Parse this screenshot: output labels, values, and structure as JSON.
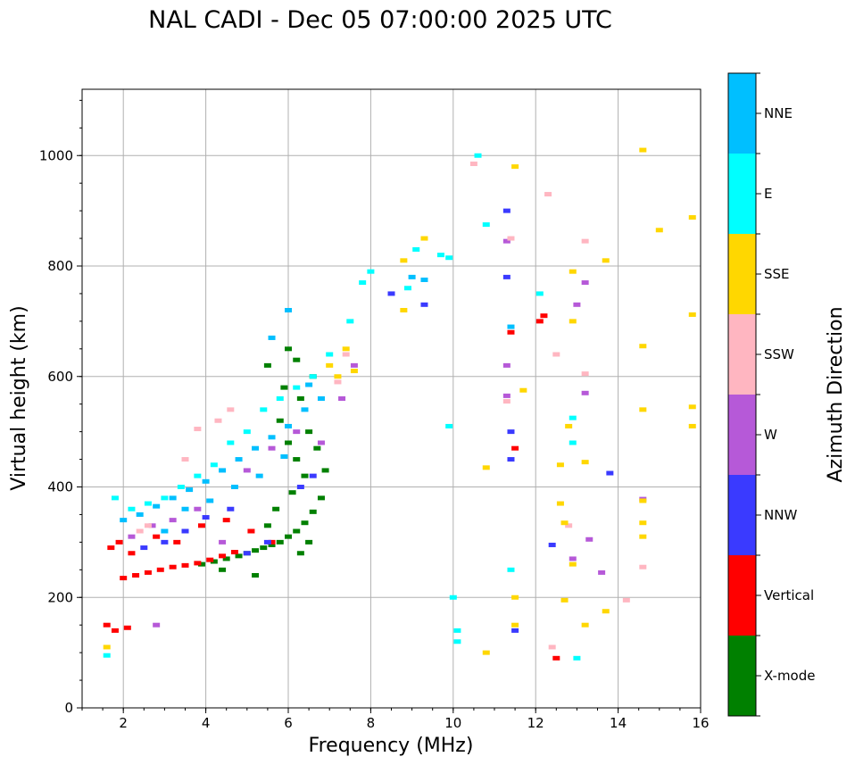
{
  "chart_data": {
    "type": "scatter",
    "title": "NAL CADI - Dec 05 07:00:00 2025 UTC",
    "xlabel": "Frequency (MHz)",
    "ylabel": "Virtual height (km)",
    "xlim": [
      1,
      16
    ],
    "ylim": [
      0,
      1120
    ],
    "xticks": [
      2,
      4,
      6,
      8,
      10,
      12,
      14,
      16
    ],
    "yticks": [
      0,
      200,
      400,
      600,
      800,
      1000
    ],
    "grid": true,
    "colorbar": {
      "title": "Azimuth Direction",
      "categories": [
        {
          "name": "X-mode",
          "color": "#008000"
        },
        {
          "name": "Vertical",
          "color": "#ff0000"
        },
        {
          "name": "NNW",
          "color": "#3a3aff"
        },
        {
          "name": "W",
          "color": "#b659d8"
        },
        {
          "name": "SSW",
          "color": "#ffb6c1"
        },
        {
          "name": "SSE",
          "color": "#ffd700"
        },
        {
          "name": "E",
          "color": "#00ffff"
        },
        {
          "name": "NNE",
          "color": "#00bfff"
        }
      ]
    },
    "series": [
      {
        "name": "X-mode",
        "points": [
          [
            4.2,
            265
          ],
          [
            4.5,
            270
          ],
          [
            4.8,
            275
          ],
          [
            5.0,
            280
          ],
          [
            5.2,
            285
          ],
          [
            5.4,
            290
          ],
          [
            5.6,
            295
          ],
          [
            5.8,
            300
          ],
          [
            6.0,
            310
          ],
          [
            6.2,
            320
          ],
          [
            6.4,
            335
          ],
          [
            6.6,
            355
          ],
          [
            6.8,
            380
          ],
          [
            6.4,
            420
          ],
          [
            6.2,
            450
          ],
          [
            6.0,
            480
          ],
          [
            6.5,
            500
          ],
          [
            5.8,
            520
          ],
          [
            6.3,
            560
          ],
          [
            5.9,
            580
          ],
          [
            6.6,
            600
          ],
          [
            6.2,
            630
          ],
          [
            6.0,
            650
          ],
          [
            5.5,
            620
          ],
          [
            4.4,
            250
          ],
          [
            5.2,
            240
          ],
          [
            3.9,
            260
          ],
          [
            6.7,
            470
          ],
          [
            6.1,
            390
          ],
          [
            5.7,
            360
          ],
          [
            6.3,
            280
          ],
          [
            5.5,
            330
          ],
          [
            6.9,
            430
          ],
          [
            6.5,
            300
          ]
        ]
      },
      {
        "name": "Vertical",
        "points": [
          [
            2.0,
            235
          ],
          [
            2.3,
            240
          ],
          [
            2.6,
            245
          ],
          [
            2.9,
            250
          ],
          [
            3.2,
            255
          ],
          [
            3.5,
            258
          ],
          [
            3.8,
            262
          ],
          [
            4.1,
            268
          ],
          [
            4.4,
            275
          ],
          [
            4.7,
            282
          ],
          [
            1.7,
            290
          ],
          [
            1.9,
            300
          ],
          [
            2.2,
            280
          ],
          [
            2.8,
            310
          ],
          [
            3.3,
            300
          ],
          [
            3.9,
            330
          ],
          [
            4.5,
            340
          ],
          [
            5.1,
            320
          ],
          [
            5.6,
            300
          ],
          [
            1.6,
            150
          ],
          [
            1.8,
            140
          ],
          [
            2.1,
            145
          ],
          [
            11.4,
            680
          ],
          [
            12.1,
            700
          ],
          [
            12.2,
            710
          ],
          [
            11.5,
            470
          ],
          [
            12.5,
            90
          ]
        ]
      },
      {
        "name": "NNW",
        "points": [
          [
            2.5,
            290
          ],
          [
            3.0,
            300
          ],
          [
            3.5,
            320
          ],
          [
            4.0,
            345
          ],
          [
            4.6,
            360
          ],
          [
            5.0,
            280
          ],
          [
            5.5,
            300
          ],
          [
            6.3,
            400
          ],
          [
            6.6,
            420
          ],
          [
            11.4,
            450
          ],
          [
            11.4,
            500
          ],
          [
            12.4,
            295
          ],
          [
            13.8,
            425
          ],
          [
            8.5,
            750
          ],
          [
            9.3,
            730
          ],
          [
            11.3,
            780
          ],
          [
            11.3,
            900
          ],
          [
            11.5,
            140
          ]
        ]
      },
      {
        "name": "W",
        "points": [
          [
            2.2,
            310
          ],
          [
            2.7,
            330
          ],
          [
            3.2,
            340
          ],
          [
            3.8,
            360
          ],
          [
            4.4,
            300
          ],
          [
            5.0,
            430
          ],
          [
            5.6,
            470
          ],
          [
            6.2,
            500
          ],
          [
            6.8,
            480
          ],
          [
            7.3,
            560
          ],
          [
            7.6,
            620
          ],
          [
            11.3,
            620
          ],
          [
            11.3,
            565
          ],
          [
            12.9,
            270
          ],
          [
            13.0,
            730
          ],
          [
            13.3,
            305
          ],
          [
            13.6,
            245
          ],
          [
            14.6,
            378
          ],
          [
            11.3,
            845
          ],
          [
            13.2,
            770
          ],
          [
            13.2,
            570
          ],
          [
            2.8,
            150
          ]
        ]
      },
      {
        "name": "SSW",
        "points": [
          [
            2.4,
            320
          ],
          [
            2.6,
            330
          ],
          [
            3.5,
            450
          ],
          [
            3.8,
            505
          ],
          [
            4.3,
            520
          ],
          [
            4.6,
            540
          ],
          [
            7.2,
            590
          ],
          [
            7.4,
            640
          ],
          [
            11.3,
            555
          ],
          [
            12.3,
            930
          ],
          [
            12.5,
            640
          ],
          [
            12.8,
            330
          ],
          [
            13.2,
            605
          ],
          [
            13.2,
            845
          ],
          [
            14.2,
            195
          ],
          [
            14.6,
            255
          ],
          [
            12.4,
            110
          ],
          [
            10.5,
            985
          ],
          [
            11.4,
            850
          ]
        ]
      },
      {
        "name": "SSE",
        "points": [
          [
            7.0,
            620
          ],
          [
            7.2,
            600
          ],
          [
            7.4,
            650
          ],
          [
            7.6,
            610
          ],
          [
            8.8,
            720
          ],
          [
            8.8,
            810
          ],
          [
            9.3,
            850
          ],
          [
            10.8,
            435
          ],
          [
            11.5,
            980
          ],
          [
            11.5,
            200
          ],
          [
            11.5,
            150
          ],
          [
            11.7,
            575
          ],
          [
            12.6,
            440
          ],
          [
            12.6,
            370
          ],
          [
            12.7,
            335
          ],
          [
            12.8,
            510
          ],
          [
            12.9,
            790
          ],
          [
            12.9,
            700
          ],
          [
            12.9,
            260
          ],
          [
            13.2,
            445
          ],
          [
            13.2,
            150
          ],
          [
            13.7,
            810
          ],
          [
            13.7,
            175
          ],
          [
            14.6,
            1010
          ],
          [
            14.6,
            655
          ],
          [
            14.6,
            540
          ],
          [
            14.6,
            375
          ],
          [
            14.6,
            335
          ],
          [
            14.6,
            310
          ],
          [
            15.0,
            865
          ],
          [
            15.8,
            888
          ],
          [
            15.8,
            712
          ],
          [
            15.8,
            545
          ],
          [
            15.8,
            510
          ],
          [
            10.8,
            100
          ],
          [
            12.7,
            195
          ],
          [
            1.6,
            110
          ]
        ]
      },
      {
        "name": "E",
        "points": [
          [
            1.8,
            380
          ],
          [
            2.2,
            360
          ],
          [
            2.6,
            370
          ],
          [
            3.0,
            380
          ],
          [
            3.4,
            400
          ],
          [
            3.8,
            420
          ],
          [
            4.2,
            440
          ],
          [
            4.6,
            480
          ],
          [
            5.0,
            500
          ],
          [
            5.4,
            540
          ],
          [
            5.8,
            560
          ],
          [
            6.2,
            580
          ],
          [
            6.6,
            600
          ],
          [
            7.0,
            640
          ],
          [
            7.5,
            700
          ],
          [
            7.8,
            770
          ],
          [
            8.0,
            790
          ],
          [
            8.9,
            760
          ],
          [
            9.1,
            830
          ],
          [
            9.7,
            820
          ],
          [
            9.9,
            815
          ],
          [
            10.0,
            200
          ],
          [
            10.1,
            140
          ],
          [
            10.1,
            120
          ],
          [
            10.6,
            1000
          ],
          [
            10.8,
            875
          ],
          [
            12.1,
            750
          ],
          [
            12.9,
            525
          ],
          [
            12.9,
            480
          ],
          [
            13.0,
            90
          ],
          [
            9.9,
            510
          ],
          [
            11.4,
            250
          ],
          [
            1.6,
            95
          ]
        ]
      },
      {
        "name": "NNE",
        "points": [
          [
            2.0,
            340
          ],
          [
            2.4,
            350
          ],
          [
            2.8,
            365
          ],
          [
            3.2,
            380
          ],
          [
            3.6,
            395
          ],
          [
            4.0,
            410
          ],
          [
            4.4,
            430
          ],
          [
            4.8,
            450
          ],
          [
            5.2,
            470
          ],
          [
            5.6,
            490
          ],
          [
            6.0,
            510
          ],
          [
            6.4,
            540
          ],
          [
            6.8,
            560
          ],
          [
            3.0,
            320
          ],
          [
            3.5,
            360
          ],
          [
            4.1,
            375
          ],
          [
            4.7,
            400
          ],
          [
            5.3,
            420
          ],
          [
            5.9,
            455
          ],
          [
            6.5,
            585
          ],
          [
            5.6,
            670
          ],
          [
            6.0,
            720
          ],
          [
            9.0,
            780
          ],
          [
            9.3,
            775
          ],
          [
            11.4,
            690
          ]
        ]
      }
    ]
  }
}
